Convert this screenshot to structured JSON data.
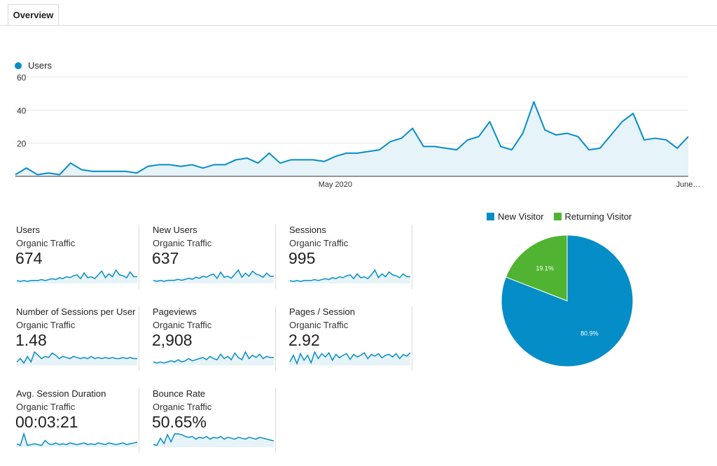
{
  "tabs": [
    {
      "label": "Overview"
    }
  ],
  "colors": {
    "primary": "#058dc7",
    "fill": "#e6f3f9",
    "secondary": "#50b432"
  },
  "chart_data": [
    {
      "type": "area",
      "series": [
        {
          "name": "Users",
          "values": [
            1,
            5,
            1,
            2,
            1,
            8,
            4,
            3,
            3,
            3,
            3,
            2,
            6,
            7,
            7,
            6,
            7,
            5,
            7,
            7,
            10,
            11,
            8,
            14,
            8,
            10,
            10,
            10,
            9,
            12,
            14,
            14,
            15,
            16,
            21,
            23,
            29,
            18,
            18,
            17,
            16,
            22,
            24,
            33,
            18,
            16,
            26,
            45,
            28,
            25,
            26,
            24,
            16,
            17,
            25,
            33,
            38,
            22,
            23,
            22,
            17,
            24
          ]
        }
      ],
      "xticks": [
        {
          "index": 29,
          "label": "May 2020"
        },
        {
          "index": 61,
          "label": "June…"
        }
      ],
      "ylim": [
        0,
        60
      ],
      "yticks": [
        20,
        40,
        60
      ],
      "legend": "top-left",
      "grid": true
    },
    {
      "type": "pie",
      "slices": [
        {
          "name": "New Visitor",
          "value": 80.9,
          "label": "80.9%",
          "color": "#058dc7"
        },
        {
          "name": "Returning Visitor",
          "value": 19.1,
          "label": "19.1%",
          "color": "#50b432"
        }
      ],
      "legend": "top"
    }
  ],
  "metrics": [
    {
      "label": "Users",
      "segment": "Organic Traffic",
      "value": "674",
      "spark": [
        3,
        2,
        3,
        2,
        3,
        3,
        3,
        4,
        3,
        4,
        5,
        4,
        6,
        5,
        7,
        6,
        8,
        9,
        5,
        11,
        6,
        7,
        5,
        9,
        13,
        6,
        10,
        7,
        14,
        9,
        8,
        6,
        12,
        7,
        7
      ]
    },
    {
      "label": "New Users",
      "segment": "Organic Traffic",
      "value": "637",
      "spark": [
        3,
        2,
        3,
        2,
        3,
        3,
        3,
        4,
        3,
        4,
        5,
        4,
        6,
        5,
        7,
        6,
        8,
        9,
        5,
        11,
        6,
        7,
        5,
        9,
        13,
        6,
        10,
        7,
        12,
        9,
        8,
        6,
        10,
        7,
        7
      ]
    },
    {
      "label": "Sessions",
      "segment": "Organic Traffic",
      "value": "995",
      "spark": [
        3,
        2,
        3,
        2,
        3,
        3,
        3,
        4,
        3,
        4,
        5,
        4,
        6,
        5,
        7,
        6,
        8,
        9,
        5,
        10,
        6,
        7,
        5,
        9,
        14,
        6,
        10,
        7,
        12,
        9,
        8,
        6,
        10,
        7,
        7
      ]
    },
    {
      "label": "Number of Sessions per User",
      "segment": "Organic Traffic",
      "value": "1.48",
      "spark": [
        3,
        6,
        2,
        8,
        3,
        12,
        9,
        6,
        8,
        7,
        11,
        9,
        6,
        8,
        7,
        6,
        8,
        7,
        6,
        7,
        6,
        8,
        6,
        7,
        6,
        7,
        6,
        7,
        6,
        6,
        7,
        6,
        7,
        6,
        6
      ]
    },
    {
      "label": "Pageviews",
      "segment": "Organic Traffic",
      "value": "2,908",
      "spark": [
        3,
        2,
        3,
        2,
        3,
        4,
        3,
        5,
        3,
        4,
        6,
        4,
        5,
        6,
        7,
        5,
        8,
        6,
        5,
        10,
        6,
        8,
        5,
        11,
        7,
        5,
        12,
        6,
        9,
        7,
        10,
        6,
        8,
        7,
        7
      ]
    },
    {
      "label": "Pages / Session",
      "segment": "Organic Traffic",
      "value": "2.92",
      "spark": [
        4,
        12,
        2,
        14,
        6,
        12,
        3,
        16,
        8,
        14,
        10,
        15,
        6,
        13,
        9,
        12,
        14,
        7,
        13,
        10,
        12,
        15,
        8,
        13,
        11,
        14,
        9,
        12,
        13,
        10,
        14,
        8,
        13,
        11,
        15
      ]
    },
    {
      "label": "Avg. Session Duration",
      "segment": "Organic Traffic",
      "value": "00:03:21",
      "spark": [
        4,
        2,
        16,
        2,
        3,
        4,
        3,
        2,
        8,
        4,
        3,
        5,
        3,
        4,
        3,
        5,
        4,
        3,
        4,
        5,
        3,
        4,
        3,
        5,
        4,
        3,
        5,
        4,
        3,
        4,
        5,
        3,
        4,
        5,
        6
      ]
    },
    {
      "label": "Bounce Rate",
      "segment": "Organic Traffic",
      "value": "50.65%",
      "spark": [
        3,
        2,
        10,
        4,
        14,
        6,
        15,
        15,
        14,
        12,
        11,
        12,
        9,
        11,
        10,
        12,
        9,
        11,
        10,
        12,
        9,
        11,
        10,
        9,
        11,
        10,
        9,
        11,
        10,
        9,
        11,
        10,
        9,
        8,
        7
      ]
    }
  ]
}
